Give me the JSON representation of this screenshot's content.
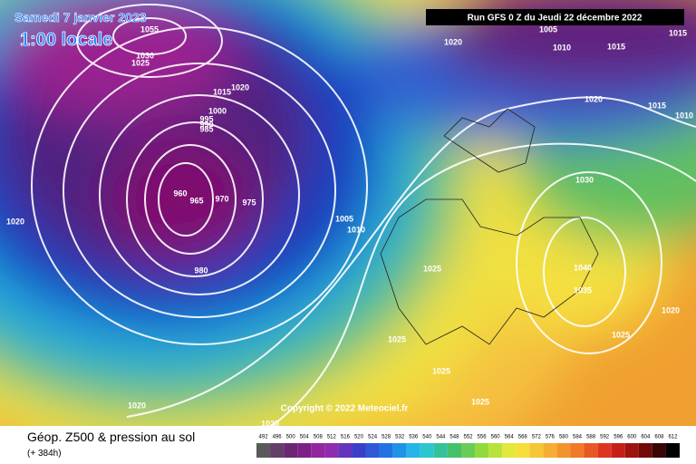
{
  "header": {
    "date": "Samedi 7 janvier 2023",
    "time": "1:00 locale",
    "run": "Run GFS 0 Z du Jeudi 22 décembre 2022"
  },
  "copyright": "Copyright © 2022 Meteociel.fr",
  "footer": {
    "title": "Géop. Z500 & pression au sol",
    "lead": "(+ 384h)"
  },
  "isobar_labels": [
    "1055",
    "1030",
    "1025",
    "1020",
    "1015",
    "1000",
    "995",
    "990",
    "985",
    "960",
    "965",
    "970",
    "975",
    "980",
    "1005",
    "1010",
    "1020",
    "1020",
    "1005",
    "1010",
    "1015",
    "1015",
    "1020",
    "1015",
    "1010",
    "1030",
    "1040",
    "1035",
    "1020",
    "1025",
    "1025",
    "1025",
    "1025",
    "1025",
    "1020",
    "1020"
  ],
  "legend": {
    "values": [
      492,
      496,
      500,
      504,
      508,
      512,
      516,
      520,
      524,
      528,
      532,
      536,
      540,
      544,
      548,
      552,
      556,
      560,
      564,
      568,
      572,
      576,
      580,
      584,
      588,
      592,
      596,
      600,
      604,
      608,
      612
    ]
  }
}
